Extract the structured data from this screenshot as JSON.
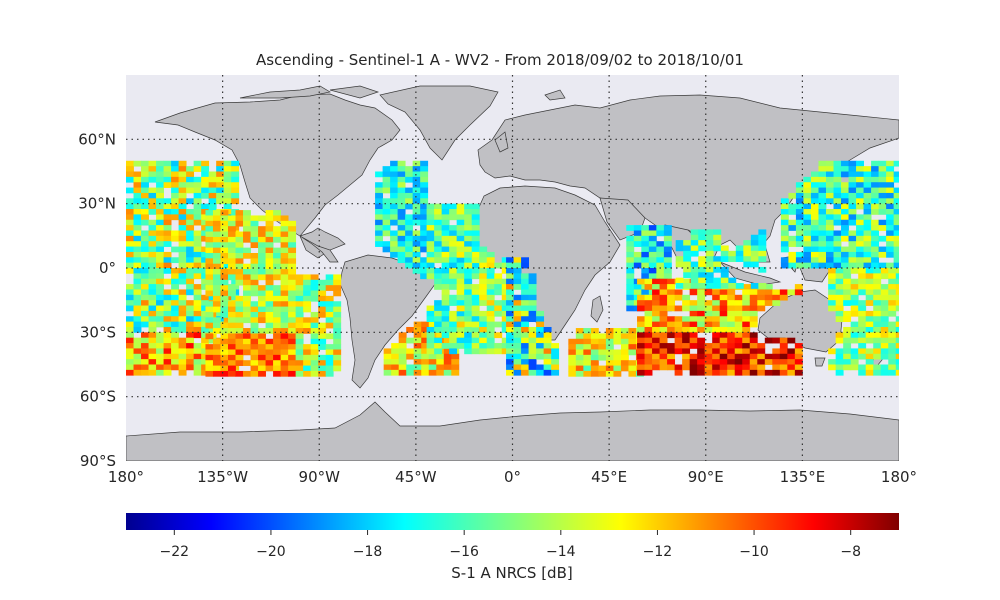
{
  "title": "Ascending - Sentinel-1 A - WV2 - From 2018/09/02 to 2018/10/01",
  "map": {
    "projection": "plate-carree",
    "lon_range": [
      -180,
      180
    ],
    "lat_range": [
      -90,
      90
    ],
    "background_color": "#eaeaf2",
    "land_color": "#c0c0c4",
    "grid_style": "dotted",
    "lat_ticks": [
      {
        "value": 60,
        "label": "60°N"
      },
      {
        "value": 30,
        "label": "30°N"
      },
      {
        "value": 0,
        "label": "0°"
      },
      {
        "value": -30,
        "label": "30°S"
      },
      {
        "value": -60,
        "label": "60°S"
      },
      {
        "value": -90,
        "label": "90°S"
      }
    ],
    "lon_ticks": [
      {
        "value": -180,
        "label": "180°"
      },
      {
        "value": -135,
        "label": "135°W"
      },
      {
        "value": -90,
        "label": "90°W"
      },
      {
        "value": -45,
        "label": "45°W"
      },
      {
        "value": 0,
        "label": "0°"
      },
      {
        "value": 45,
        "label": "45°E"
      },
      {
        "value": 90,
        "label": "90°E"
      },
      {
        "value": 135,
        "label": "135°E"
      },
      {
        "value": 180,
        "label": "180°"
      }
    ]
  },
  "chart_data": {
    "type": "heatmap",
    "variable": "S-1 A NRCS",
    "units": "dB",
    "value_range": [
      -23,
      -7
    ],
    "colormap": "jet",
    "cell_size_deg": [
      3.5,
      2.5
    ],
    "coverage_lat_range": [
      -50,
      50
    ],
    "swaths": [
      {
        "lon": [
          -180,
          -129
        ],
        "lat": [
          -50,
          50
        ],
        "typical_range": [
          -18,
          -11
        ],
        "south_high": true
      },
      {
        "lon": [
          -143,
          -101
        ],
        "lat": [
          -50,
          27
        ],
        "typical_range": [
          -16,
          -11
        ],
        "south_high": true
      },
      {
        "lon": [
          -101,
          -83
        ],
        "lat": [
          -50,
          -3
        ],
        "typical_range": [
          -17,
          -11
        ]
      },
      {
        "lon": [
          -64,
          -42
        ],
        "lat": [
          -7,
          50
        ],
        "typical_range": [
          -19,
          -14
        ]
      },
      {
        "lon": [
          -60,
          -26
        ],
        "lat": [
          -50,
          -25
        ],
        "typical_range": [
          -16,
          -10
        ]
      },
      {
        "lon": [
          -40,
          -18
        ],
        "lat": [
          -38,
          30
        ],
        "typical_range": [
          -18,
          -13
        ]
      },
      {
        "lon": [
          -26,
          -3
        ],
        "lat": [
          -40,
          15
        ],
        "typical_range": [
          -17,
          -12
        ]
      },
      {
        "lon": [
          -3,
          21
        ],
        "lat": [
          -50,
          5
        ],
        "typical_range": [
          -20,
          -11
        ]
      },
      {
        "lon": [
          26,
          59
        ],
        "lat": [
          -50,
          -28
        ],
        "typical_range": [
          -16,
          -10
        ]
      },
      {
        "lon": [
          53,
          72
        ],
        "lat": [
          -18,
          20
        ],
        "typical_range": [
          -20,
          -14
        ]
      },
      {
        "lon": [
          58,
          135
        ],
        "lat": [
          -50,
          -5
        ],
        "typical_range": [
          -15,
          -9
        ],
        "south_high": true
      },
      {
        "lon": [
          76,
          115
        ],
        "lat": [
          -8,
          18
        ],
        "typical_range": [
          -18,
          -13
        ]
      },
      {
        "lon": [
          125,
          180
        ],
        "lat": [
          0,
          50
        ],
        "typical_range": [
          -19,
          -13
        ]
      },
      {
        "lon": [
          147,
          180
        ],
        "lat": [
          -50,
          0
        ],
        "typical_range": [
          -17,
          -12
        ]
      }
    ]
  },
  "colorbar": {
    "label": "S-1 A NRCS [dB]",
    "min": -23,
    "max": -7,
    "ticks": [
      {
        "value": -22,
        "label": "−22"
      },
      {
        "value": -20,
        "label": "−20"
      },
      {
        "value": -18,
        "label": "−18"
      },
      {
        "value": -16,
        "label": "−16"
      },
      {
        "value": -14,
        "label": "−14"
      },
      {
        "value": -12,
        "label": "−12"
      },
      {
        "value": -10,
        "label": "−10"
      },
      {
        "value": -8,
        "label": "−8"
      }
    ]
  }
}
